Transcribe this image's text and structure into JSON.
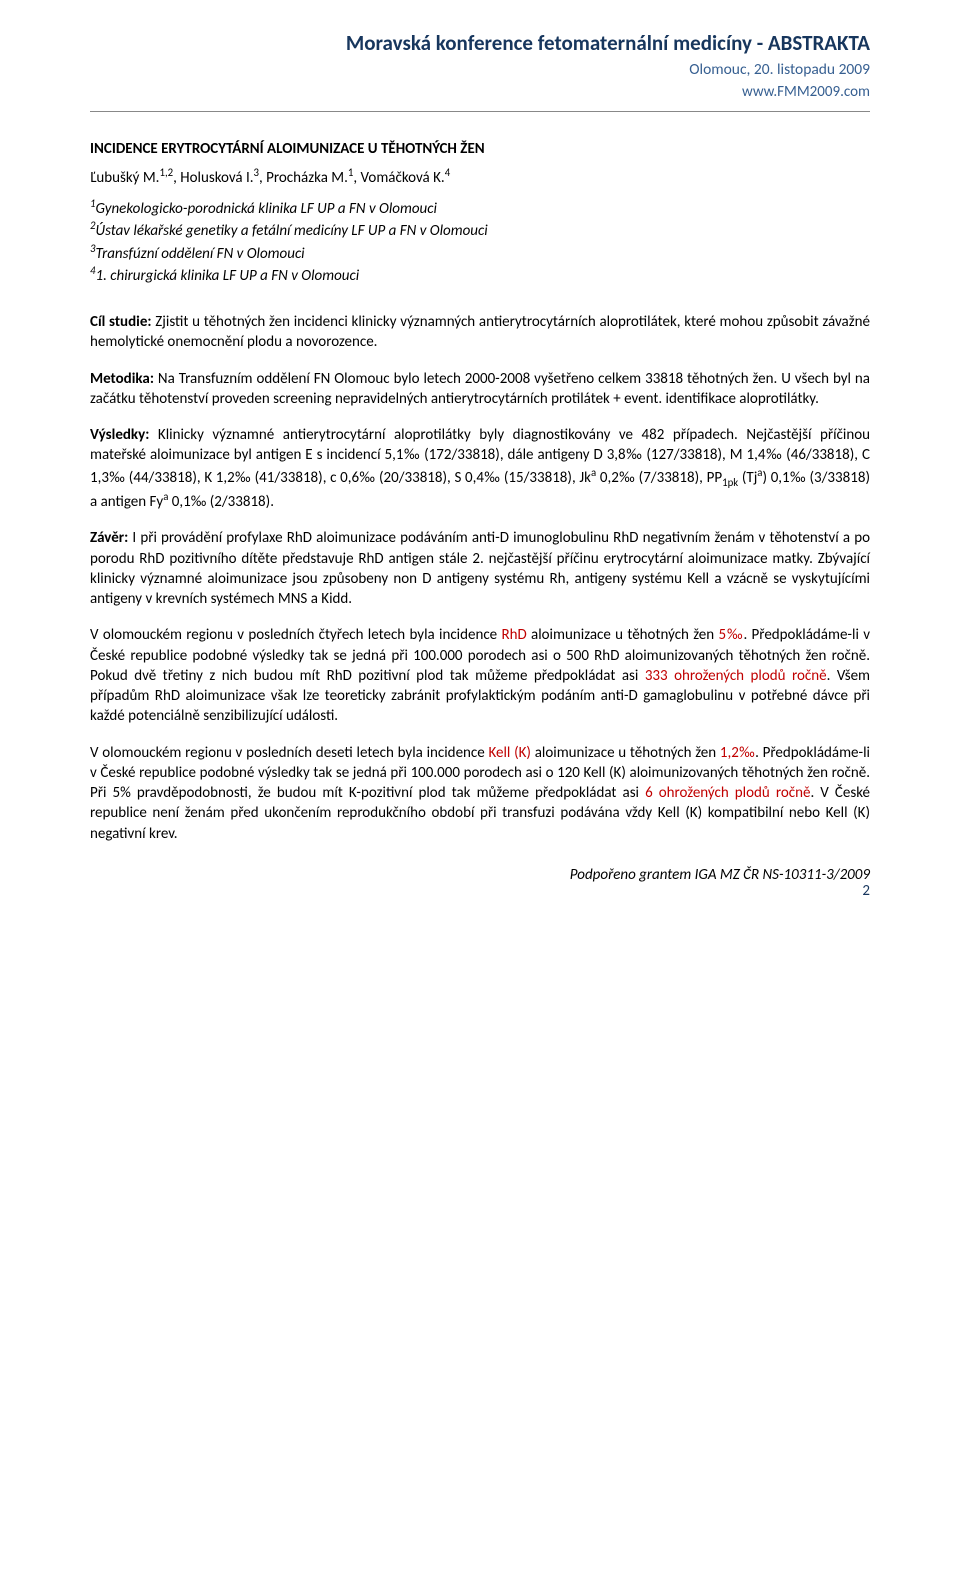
{
  "header": {
    "title": "Moravská konference fetomaternální medicíny - ABSTRAKTA",
    "subtitle": "Olomouc, 20. listopadu 2009",
    "url": "www.FMM2009.com"
  },
  "doc": {
    "title": "INCIDENCE ERYTROCYTÁRNÍ ALOIMUNIZACE U TĚHOTNÝCH ŽEN",
    "authors_html": "Ľubušký M.<sup>1,2</sup>, Holusková I.<sup>3</sup>, Procházka M.<sup>1</sup>, Vomáčková K.<sup>4</sup>",
    "affiliations_html": "<sup>1</sup>Gynekologicko-porodnická klinika LF UP a FN v Olomouci<br><sup>2</sup>Ústav lékařské genetiky a fetální medicíny LF UP a FN v Olomouci<br><sup>3</sup>Transfúzní oddělení FN v Olomouci<br><sup>4</sup>1. chirurgická klinika LF UP a FN v Olomouci"
  },
  "sections": {
    "cil_label": "Cíl studie:",
    "cil_text": " Zjistit u těhotných žen incidenci klinicky významných antierytrocytárních aloprotilátek, které mohou způsobit závažné hemolytické onemocnění plodu a novorozence.",
    "metodika_label": "Metodika:",
    "metodika_text": " Na Transfuzním oddělení FN Olomouc bylo letech 2000-2008 vyšetřeno celkem 33818 těhotných žen. U všech byl na začátku těhotenství proveden screening nepravidelných antierytrocytárních protilátek + event. identifikace aloprotilátky.",
    "vysledky_label": "Výsledky:",
    "vysledky_html": " Klinicky významné antierytrocytární aloprotilátky byly diagnostikovány ve 482 případech. Nejčastější příčinou mateřské aloimunizace byl antigen E s incidencí 5,1‰ (172/33818), dále antigeny D 3,8‰ (127/33818), M 1,4‰ (46/33818), C 1,3‰ (44/33818), K 1,2‰ (41/33818), c 0,6‰ (20/33818), S 0,4‰ (15/33818), Jk<sup>a</sup> 0,2‰ (7/33818), PP<sub>1pk</sub> (Tj<sup>a</sup>) 0,1‰ (3/33818) a antigen Fy<sup>a</sup> 0,1‰ (2/33818).",
    "zaver_label": "Závěr:",
    "zaver_text": " I při provádění profylaxe RhD aloimunizace podáváním anti-D imunoglobulinu RhD negativním ženám v těhotenství a po porodu RhD pozitivního dítěte představuje RhD antigen stále 2. nejčastější příčinu erytrocytární aloimunizace matky. Zbývající klinicky významné aloimunizace jsou způsobeny non D antigeny systému Rh, antigeny systému Kell a vzácně se vyskytujícími antigeny v krevních systémech MNS a Kidd.",
    "para_rhd_html": "V olomouckém regionu v posledních čtyřech letech byla incidence <span class=\"red\">RhD</span> aloimunizace u těhotných žen <span class=\"red\">5‰</span>. Předpokládáme-li v České republice podobné výsledky tak se jedná při 100.000 porodech asi o 500 RhD aloimunizovaných těhotných žen ročně. Pokud dvě třetiny z nich budou mít RhD pozitivní plod tak můžeme předpokládat asi <span class=\"red\">333 ohrožených plodů ročně</span>. Všem případům RhD aloimunizace však lze teoreticky zabránit profylaktickým podáním anti-D gamaglobulinu v potřebné dávce při každé potenciálně senzibilizující události.",
    "para_kell_html": "V olomouckém regionu v posledních deseti letech byla incidence <span class=\"red\">Kell (K)</span> aloimunizace u těhotných žen <span class=\"red\">1,2‰</span>. Předpokládáme-li v České republice podobné výsledky tak se jedná při 100.000 porodech asi o 120 Kell (K) aloimunizovaných těhotných žen ročně. Při 5% pravděpodobnosti, že budou mít K-pozitivní plod tak můžeme předpokládat asi <span class=\"red\">6 ohrožených plodů ročně</span>. V České republice není ženám před ukončením reprodukčního období při transfuzi podávána vždy Kell (K) kompatibilní nebo Kell (K) negativní krev."
  },
  "footer": {
    "grant": "Podpořeno grantem IGA MZ ČR NS-10311-3/2009",
    "page_number": "2"
  },
  "colors": {
    "header_title": "#17365d",
    "header_sub": "#365f91",
    "border": "#888888",
    "red": "#c00000",
    "text": "#000000",
    "background": "#ffffff"
  }
}
